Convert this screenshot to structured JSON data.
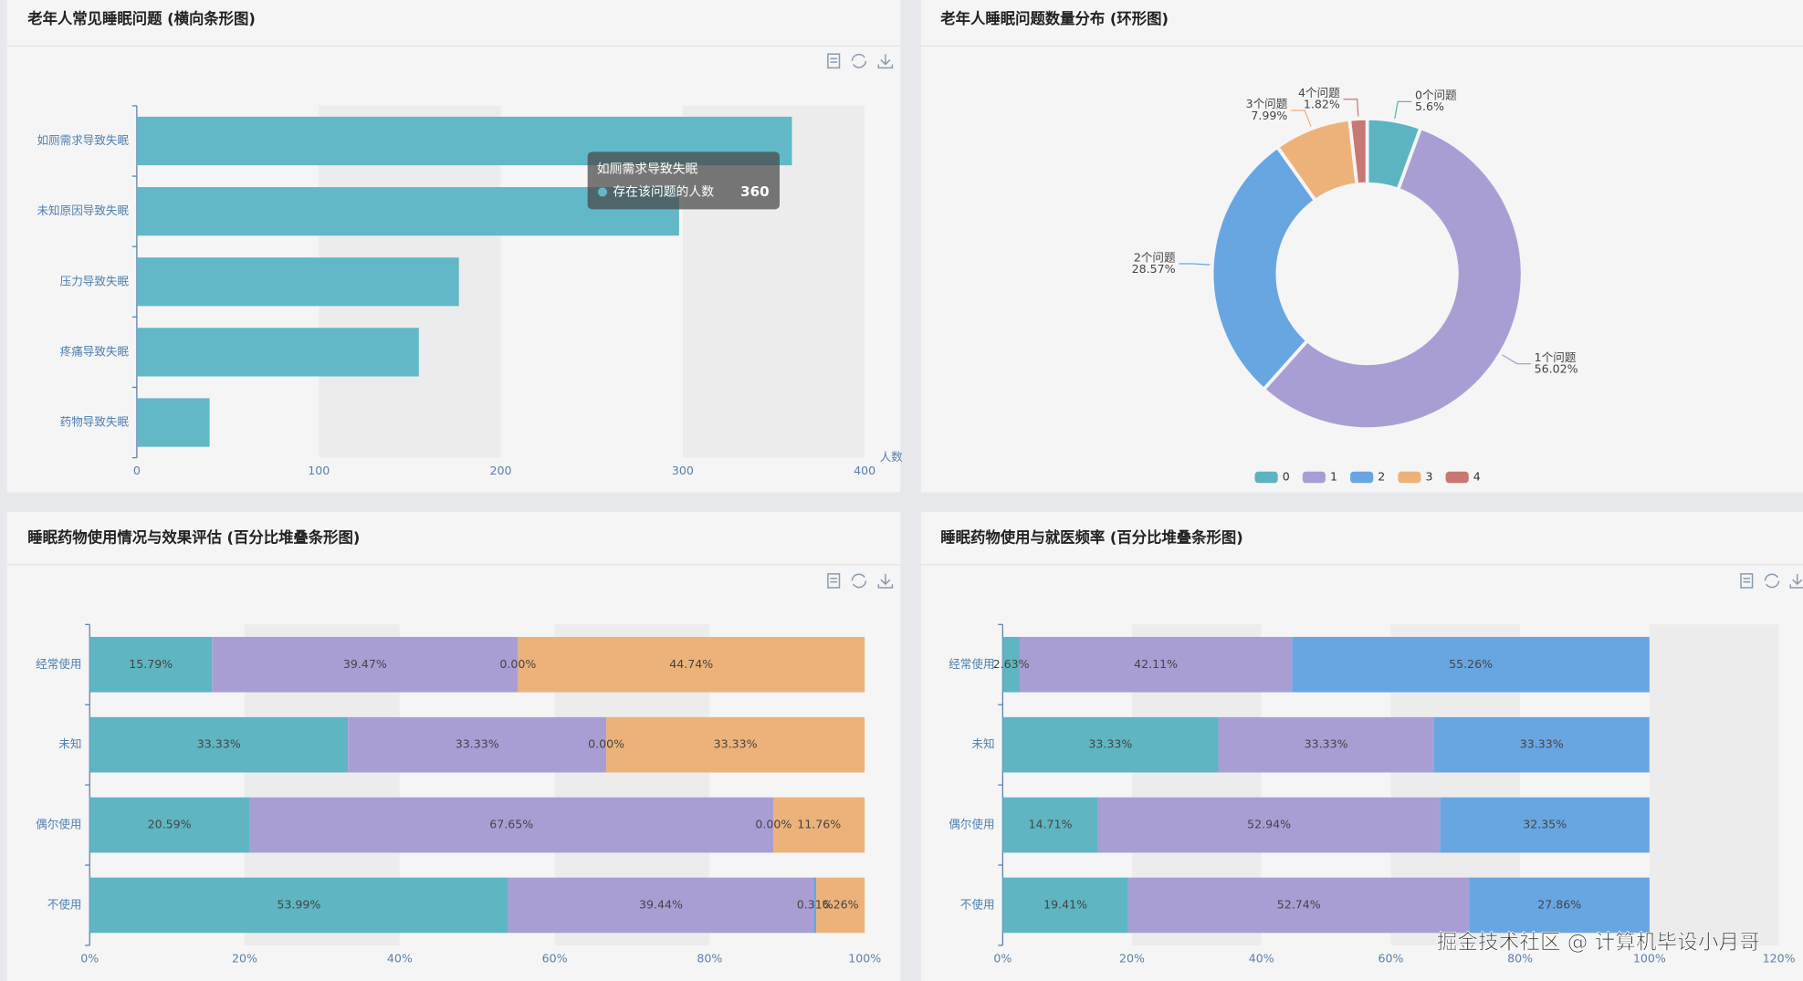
{
  "chart_data": [
    {
      "type": "bar",
      "orientation": "horizontal",
      "title": "老年人常见睡眠问题 (横向条形图)",
      "categories": [
        "如厕需求导致失眠",
        "未知原因导致失眠",
        "压力导致失眠",
        "疼痛导致失眠",
        "药物导致失眠"
      ],
      "values": [
        360,
        298,
        177,
        155,
        40
      ],
      "color": "#62b8c6",
      "xlim": [
        0,
        400
      ],
      "xticks": [
        0,
        100,
        200,
        300,
        400
      ],
      "xlabel": "人数",
      "split_area": true,
      "tooltip": {
        "title": "如厕需求导致失眠",
        "series_name": "存在该问题的人数",
        "value": 360
      }
    },
    {
      "type": "pie",
      "donut": true,
      "title": "老年人睡眠问题数量分布 (环形图)",
      "categories": [
        "0",
        "1",
        "2",
        "3",
        "4"
      ],
      "labels": [
        "0个问题",
        "1个问题",
        "2个问题",
        "3个问题",
        "4个问题"
      ],
      "values": [
        5.6,
        56.02,
        28.57,
        7.99,
        1.82
      ],
      "value_labels": [
        "5.6%",
        "56.02%",
        "28.57%",
        "7.99%",
        "1.82%"
      ],
      "colors": [
        "#5cb4c0",
        "#a99ed4",
        "#68a6e2",
        "#edb27a",
        "#c97773"
      ],
      "legend": "bottom"
    },
    {
      "type": "stacked_bar",
      "orientation": "horizontal",
      "title": "睡眠药物使用情况与效果评估 (百分比堆叠条形图)",
      "categories": [
        "经常使用",
        "未知",
        "偶尔使用",
        "不使用"
      ],
      "series": [
        {
          "color": "#5fb5c1",
          "values": [
            15.79,
            33.33,
            20.59,
            53.99
          ],
          "value_labels": [
            "15.79%",
            "33.33%",
            "20.59%",
            "53.99%"
          ]
        },
        {
          "color": "#a99ed4",
          "values": [
            39.47,
            33.33,
            67.65,
            39.44
          ],
          "value_labels": [
            "39.47%",
            "33.33%",
            "67.65%",
            "39.44%"
          ]
        },
        {
          "color": "#68a6e2",
          "values": [
            0,
            0,
            0,
            0.31
          ],
          "value_labels": [
            "0.00%",
            "0.00%",
            "0.00%",
            "0.31%"
          ]
        },
        {
          "color": "#edb27a",
          "values": [
            44.74,
            33.33,
            11.76,
            6.26
          ],
          "value_labels": [
            "44.74%",
            "33.33%",
            "11.76%",
            "6.26%"
          ]
        }
      ],
      "xlim": [
        0,
        100
      ],
      "xticks": [
        {
          "value": 0,
          "label": "0%"
        },
        {
          "value": 20,
          "label": "20%"
        },
        {
          "value": 40,
          "label": "40%"
        },
        {
          "value": 60,
          "label": "60%"
        },
        {
          "value": 80,
          "label": "80%"
        },
        {
          "value": 100,
          "label": "100%"
        }
      ],
      "split_area": true
    },
    {
      "type": "stacked_bar",
      "orientation": "horizontal",
      "title": "睡眠药物使用与就医频率 (百分比堆叠条形图)",
      "categories": [
        "经常使用",
        "未知",
        "偶尔使用",
        "不使用"
      ],
      "series": [
        {
          "color": "#5fb5c1",
          "values": [
            2.63,
            33.33,
            14.71,
            19.41
          ],
          "value_labels": [
            "2.63%",
            "33.33%",
            "14.71%",
            "19.41%"
          ]
        },
        {
          "color": "#a99ed4",
          "values": [
            42.11,
            33.33,
            52.94,
            52.74
          ],
          "value_labels": [
            "42.11%",
            "33.33%",
            "52.94%",
            "52.74%"
          ]
        },
        {
          "color": "#68a6e2",
          "values": [
            55.26,
            33.33,
            32.35,
            27.86
          ],
          "value_labels": [
            "55.26%",
            "33.33%",
            "32.35%",
            "27.86%"
          ]
        }
      ],
      "xlim": [
        0,
        120
      ],
      "xticks": [
        {
          "value": 0,
          "label": "0%"
        },
        {
          "value": 20,
          "label": "20%"
        },
        {
          "value": 40,
          "label": "40%"
        },
        {
          "value": 60,
          "label": "60%"
        },
        {
          "value": 80,
          "label": "80%"
        },
        {
          "value": 100,
          "label": "100%"
        },
        {
          "value": 120,
          "label": "120%"
        }
      ],
      "split_area": true
    }
  ],
  "watermark": "掘金技术社区 @ 计算机毕设小月哥"
}
